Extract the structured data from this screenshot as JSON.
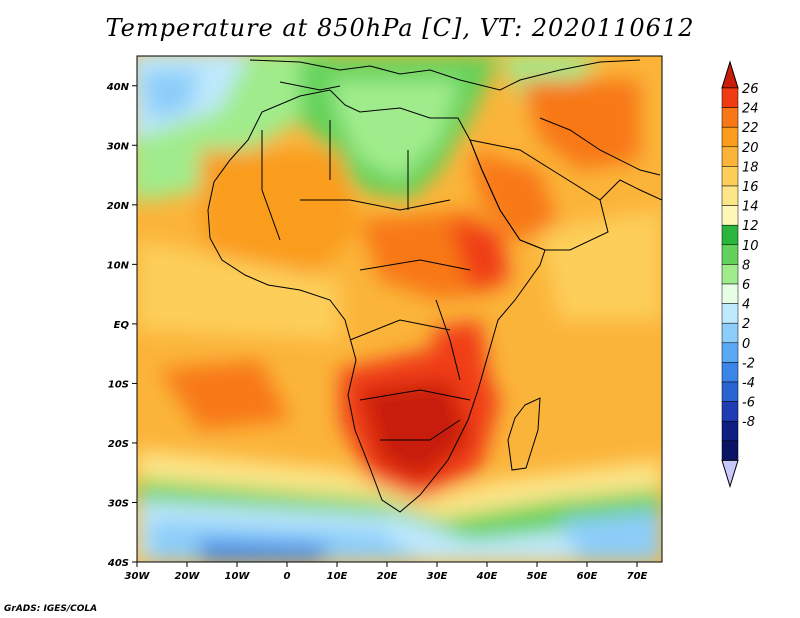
{
  "title": "Temperature at 850hPa [C], VT: 2020110612",
  "credit": "GrADS: IGES/COLA",
  "map": {
    "projection": "lat-lon",
    "lon_range": [
      -30,
      75
    ],
    "lat_range": [
      -40,
      45
    ],
    "y_ticks": [
      {
        "lat": 40,
        "label": "40N"
      },
      {
        "lat": 30,
        "label": "30N"
      },
      {
        "lat": 20,
        "label": "20N"
      },
      {
        "lat": 10,
        "label": "10N"
      },
      {
        "lat": 0,
        "label": "EQ"
      },
      {
        "lat": -10,
        "label": "10S"
      },
      {
        "lat": -20,
        "label": "20S"
      },
      {
        "lat": -30,
        "label": "30S"
      },
      {
        "lat": -40,
        "label": "40S"
      }
    ],
    "x_ticks": [
      {
        "lon": -30,
        "label": "30W"
      },
      {
        "lon": -20,
        "label": "20W"
      },
      {
        "lon": -10,
        "label": "10W"
      },
      {
        "lon": 0,
        "label": "0"
      },
      {
        "lon": 10,
        "label": "10E"
      },
      {
        "lon": 20,
        "label": "20E"
      },
      {
        "lon": 30,
        "label": "30E"
      },
      {
        "lon": 40,
        "label": "40E"
      },
      {
        "lon": 50,
        "label": "50E"
      },
      {
        "lon": 60,
        "label": "60E"
      },
      {
        "lon": 70,
        "label": "70E"
      }
    ]
  },
  "colorbar": {
    "levels": [
      "26",
      "24",
      "22",
      "20",
      "18",
      "16",
      "14",
      "12",
      "10",
      "8",
      "6",
      "4",
      "2",
      "0",
      "-2",
      "-4",
      "-6",
      "-8"
    ],
    "colors": [
      "#f03c14",
      "#f87818",
      "#fa9c1c",
      "#fbb43a",
      "#fdcf5a",
      "#fde68a",
      "#fff7b8",
      "#2cb53c",
      "#64d25a",
      "#a0ec8c",
      "#e6fde6",
      "#bfe9fd",
      "#8ccdf9",
      "#5aaaf3",
      "#3a86e8",
      "#2864d2",
      "#1e3cb4",
      "#0f1e82",
      "#0a1464"
    ],
    "top_color": "#c81e0a",
    "bottom_color": "#c8c8fa"
  }
}
